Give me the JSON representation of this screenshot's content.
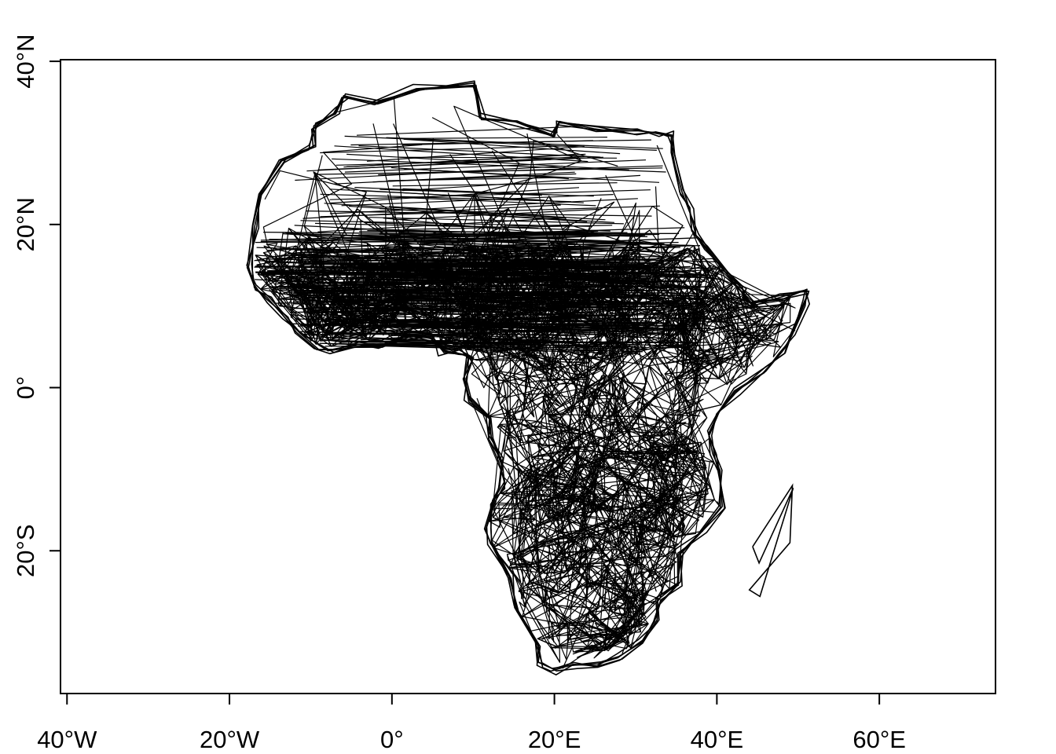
{
  "map": {
    "x_axis": {
      "ticks": [
        {
          "lon": -40,
          "label": "40°W"
        },
        {
          "lon": -20,
          "label": "20°W"
        },
        {
          "lon": 0,
          "label": "0°"
        },
        {
          "lon": 20,
          "label": "20°E"
        },
        {
          "lon": 40,
          "label": "40°E"
        },
        {
          "lon": 60,
          "label": "60°E"
        }
      ],
      "range": [
        -40.8,
        74.3
      ]
    },
    "y_axis": {
      "ticks": [
        {
          "lat": 40,
          "label": "40°N"
        },
        {
          "lat": 20,
          "label": "20°N"
        },
        {
          "lat": 0,
          "label": "0°"
        },
        {
          "lat": -20,
          "label": "20°S"
        }
      ],
      "range": [
        -37.5,
        40.2
      ]
    },
    "line_color": "#000000",
    "box_color": "#000000"
  }
}
